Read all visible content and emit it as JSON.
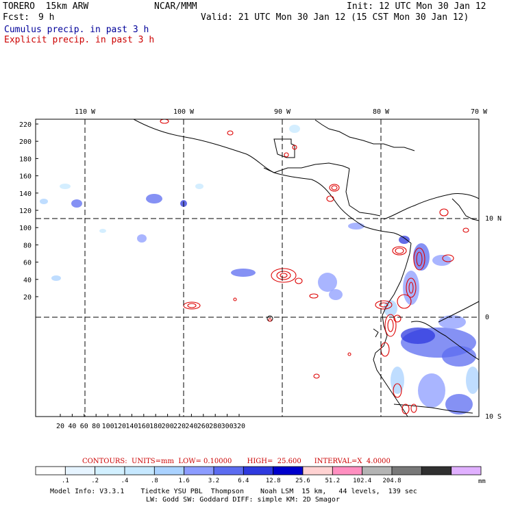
{
  "header": {
    "model_name": "TORERO  15km ARW",
    "org": "NCAR/MMM",
    "init": "Init: 12 UTC Mon 30 Jan 12",
    "fcst_label": "Fcst:",
    "fcst_value": "9 h",
    "valid": "Valid: 21 UTC Mon 30 Jan 12 (15 CST Mon 30 Jan 12)",
    "legend_cumulus": "Cumulus precip. in past 3 h",
    "legend_explicit": "Explicit precip. in past 3 h"
  },
  "colors": {
    "cumulus_text": "#000099",
    "explicit_text": "#cc0000",
    "contour": "#dd0000",
    "coast": "#000000",
    "grid": "#000000"
  },
  "axes": {
    "top_longitudes": [
      "110 W",
      "100 W",
      "90 W",
      "80 W",
      "70 W"
    ],
    "right_latitudes": [
      "10 N",
      "0",
      "10 S"
    ],
    "y_ticks": [
      "220",
      "200",
      "180",
      "160",
      "140",
      "120",
      "100",
      "80",
      "60",
      "40",
      "20"
    ],
    "x_ticks": [
      "20",
      "40",
      "60",
      "80",
      "100",
      "120",
      "140",
      "160",
      "180",
      "200",
      "220",
      "240",
      "260",
      "280",
      "300",
      "320"
    ]
  },
  "contours": {
    "text": "CONTOURS:  UNITS=mm  LOW= 0.10000       HIGH=  25.600      INTERVAL=X  4.0000"
  },
  "colorbar": {
    "unit": "mm",
    "labels": [
      ".1",
      ".2",
      ".4",
      ".8",
      "1.6",
      "3.2",
      "6.4",
      "12.8",
      "25.6",
      "51.2",
      "102.4",
      "204.8"
    ],
    "colors": [
      "#ffffff",
      "#e6f4ff",
      "#d2f0ff",
      "#c6e8ff",
      "#aad2ff",
      "#8c9cff",
      "#5c6cf0",
      "#2f3adf",
      "#0000cc",
      "#ffd2d2",
      "#ff8fc0",
      "#b4b4b4",
      "#787878",
      "#303030",
      "#e0b0ff"
    ]
  },
  "footer": {
    "line1": "Model Info: V3.3.1    Tiedtke YSU PBL  Thompson    Noah LSM  15 km,   44 levels,  139 sec",
    "line2": "LW: Godd SW: Goddard DIFF: simple KM: 2D Smagor"
  }
}
